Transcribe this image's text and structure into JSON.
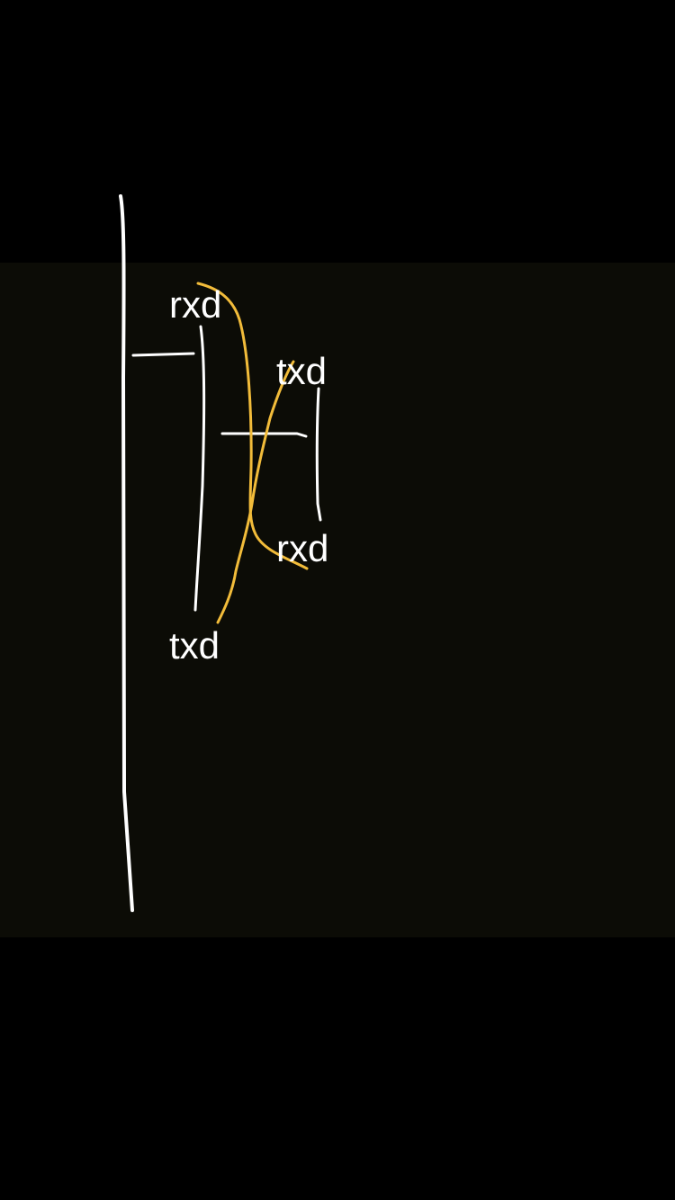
{
  "labels": {
    "rxd_left": "rxd",
    "txd_left": "txd",
    "txd_right": "txd",
    "rxd_right": "rxd"
  },
  "colors": {
    "page_background": "#000000",
    "canvas_background": "#0c0c06",
    "pen_white": "#ffffff",
    "pen_yellow": "#f2bc3a"
  }
}
